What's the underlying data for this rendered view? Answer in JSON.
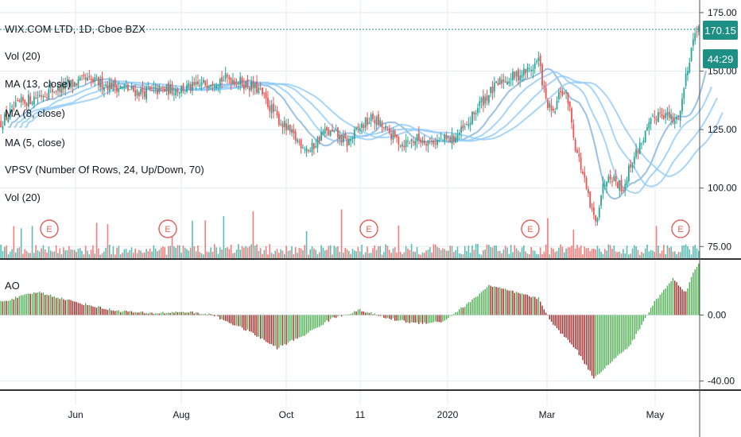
{
  "legend": {
    "title": "WIX.COM LTD, 1D, Cboe BZX",
    "items": [
      "Vol (20)",
      "MA (13, close)",
      "MA (8, close)",
      "MA (5, close)",
      "VPSV (Number Of Rows, 24, Up/Down, 70)",
      "Vol (20)"
    ]
  },
  "last_price": {
    "value": "170.15",
    "countdown": "44:29"
  },
  "colors": {
    "up": "#26a69a",
    "down": "#ef5350",
    "ao_up": "#4caf50",
    "ao_down": "#a32a2a",
    "ma": "#90caf9",
    "grid": "#e1ecf2",
    "tag": "#26a69a",
    "earnings": "#e0645f"
  },
  "chart_data": [
    {
      "type": "candlestick",
      "title": "WIX.COM LTD, 1D, Cboe BZX",
      "y_ticks": [
        "175.00",
        "150.00",
        "125.00",
        "100.00",
        "75.00"
      ],
      "x_ticks": [
        "Jun",
        "Aug",
        "Oct",
        "11",
        "2020",
        "Mar",
        "May"
      ],
      "ylim": [
        70,
        177
      ],
      "earnings_markers": [
        "E",
        "E",
        "E",
        "E",
        "E"
      ],
      "close_path": [
        [
          0,
          128
        ],
        [
          10,
          136
        ],
        [
          25,
          141
        ],
        [
          45,
          146
        ],
        [
          60,
          144
        ],
        [
          75,
          141
        ],
        [
          90,
          142
        ],
        [
          105,
          143
        ],
        [
          115,
          146
        ],
        [
          125,
          147
        ],
        [
          140,
          142
        ],
        [
          150,
          130
        ],
        [
          160,
          121
        ],
        [
          168,
          116
        ],
        [
          175,
          124
        ],
        [
          182,
          123
        ],
        [
          188,
          119
        ],
        [
          195,
          126
        ],
        [
          202,
          130
        ],
        [
          210,
          124
        ],
        [
          218,
          119
        ],
        [
          226,
          121
        ],
        [
          236,
          120
        ],
        [
          245,
          121
        ],
        [
          253,
          126
        ],
        [
          260,
          136
        ],
        [
          266,
          141
        ],
        [
          272,
          146
        ],
        [
          280,
          148
        ],
        [
          288,
          151
        ],
        [
          292,
          155
        ],
        [
          296,
          137
        ],
        [
          300,
          131
        ],
        [
          304,
          142
        ],
        [
          308,
          138
        ],
        [
          312,
          118
        ],
        [
          316,
          106
        ],
        [
          320,
          92
        ],
        [
          323,
          85
        ],
        [
          326,
          98
        ],
        [
          330,
          107
        ],
        [
          334,
          103
        ],
        [
          338,
          100
        ],
        [
          342,
          110
        ],
        [
          348,
          120
        ],
        [
          354,
          129
        ],
        [
          358,
          133
        ],
        [
          362,
          131
        ],
        [
          366,
          128
        ],
        [
          369,
          133
        ],
        [
          372,
          148
        ],
        [
          375,
          160
        ],
        [
          378,
          169
        ],
        [
          380,
          170
        ]
      ]
    },
    {
      "type": "bar",
      "title": "AO",
      "y_ticks": [
        "0.00",
        "-40.00"
      ],
      "ylim": [
        -45,
        32
      ],
      "profile": [
        [
          0,
          8
        ],
        [
          20,
          14
        ],
        [
          40,
          8
        ],
        [
          60,
          3
        ],
        [
          80,
          1
        ],
        [
          100,
          2
        ],
        [
          115,
          0
        ],
        [
          135,
          -10
        ],
        [
          150,
          -20
        ],
        [
          165,
          -12
        ],
        [
          180,
          -2
        ],
        [
          195,
          3
        ],
        [
          210,
          -2
        ],
        [
          225,
          -5
        ],
        [
          240,
          -4
        ],
        [
          255,
          8
        ],
        [
          265,
          18
        ],
        [
          275,
          15
        ],
        [
          285,
          12
        ],
        [
          292,
          10
        ],
        [
          300,
          -6
        ],
        [
          312,
          -20
        ],
        [
          322,
          -38
        ],
        [
          332,
          -28
        ],
        [
          342,
          -18
        ],
        [
          355,
          8
        ],
        [
          365,
          22
        ],
        [
          372,
          14
        ],
        [
          377,
          28
        ],
        [
          380,
          32
        ]
      ]
    }
  ]
}
